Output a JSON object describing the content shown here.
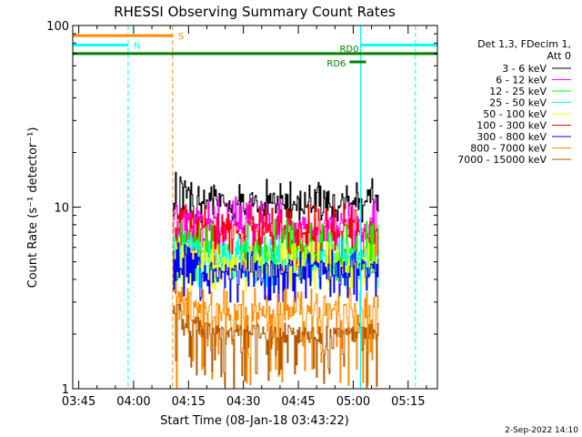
{
  "chart_data": {
    "type": "line",
    "title": "RHESSI Observing Summary Count Rates",
    "xlabel": "Start Time (08-Jan-18 03:43:22)",
    "ylabel": "Count Rate (s⁻¹ detector⁻¹)",
    "y_scale": "log",
    "ylim": [
      1,
      100
    ],
    "y_ticks": [
      {
        "value": 1,
        "label": "1"
      },
      {
        "value": 10,
        "label": "10"
      },
      {
        "value": 100,
        "label": "100"
      }
    ],
    "x_range": [
      "03:43:22",
      "05:23:00"
    ],
    "x_ticks": [
      {
        "value": "03:45",
        "label": "03:45"
      },
      {
        "value": "04:00",
        "label": "04:00"
      },
      {
        "value": "04:15",
        "label": "04:15"
      },
      {
        "value": "04:30",
        "label": "04:30"
      },
      {
        "value": "04:45",
        "label": "04:45"
      },
      {
        "value": "05:00",
        "label": "05:00"
      },
      {
        "value": "05:15",
        "label": "05:15"
      }
    ],
    "legend": {
      "placement": "right",
      "header": [
        "Det 1,3, FDecim 1,",
        "Att 0"
      ],
      "entries": [
        {
          "label": "3 - 6 keV",
          "color": "#000000"
        },
        {
          "label": "6 - 12 keV",
          "color": "#ff00ff"
        },
        {
          "label": "12 - 25 keV",
          "color": "#00ff00"
        },
        {
          "label": "25 - 50 keV",
          "color": "#00ffff"
        },
        {
          "label": "50 - 100 keV",
          "color": "#ffff00"
        },
        {
          "label": "100 - 300 keV",
          "color": "#ff0000"
        },
        {
          "label": "300 - 800 keV",
          "color": "#0000ff"
        },
        {
          "label": "800 - 7000 keV",
          "color": "#ff8c00"
        },
        {
          "label": "7000 - 15000 keV",
          "color": "#b35900"
        }
      ]
    },
    "data_interval": [
      "04:10:40",
      "05:07:00"
    ],
    "series": [
      {
        "band": "3 - 6 keV",
        "color": "#000000",
        "typical": 10.5,
        "low": 8.2,
        "high": 14.5
      },
      {
        "band": "6 - 12 keV",
        "color": "#ff00ff",
        "typical": 7.8,
        "low": 5.6,
        "high": 11.5
      },
      {
        "band": "12 - 25 keV",
        "color": "#00ff00",
        "typical": 5.5,
        "low": 3.9,
        "high": 8.5
      },
      {
        "band": "25 - 50 keV",
        "color": "#00ffff",
        "typical": 5.0,
        "low": 3.6,
        "high": 7.0
      },
      {
        "band": "50 - 100 keV",
        "color": "#ffff00",
        "typical": 4.6,
        "low": 3.4,
        "high": 6.5
      },
      {
        "band": "100 - 300 keV",
        "color": "#ff0000",
        "typical": 7.2,
        "low": 4.2,
        "high": 10.5
      },
      {
        "band": "300 - 800 keV",
        "color": "#0000ff",
        "typical": 4.4,
        "low": 3.0,
        "high": 5.8
      },
      {
        "band": "800 - 7000 keV",
        "color": "#ff8c00",
        "typical": 2.6,
        "low": 1.0,
        "high": 3.6
      },
      {
        "band": "7000 - 15000 keV",
        "color": "#b35900",
        "typical": 2.0,
        "low": 1.0,
        "high": 2.2
      }
    ],
    "flags": [
      {
        "label": "S",
        "color": "#ff8c00",
        "level": 88,
        "start": "03:43:22",
        "end": "04:10:40"
      },
      {
        "label": "N",
        "color": "#00ffff",
        "level": 78,
        "start": "03:43:22",
        "end": "03:58:30"
      },
      {
        "label": "N",
        "color": "#00ffff",
        "level": 78,
        "start": "05:02:00",
        "end": "05:23:00",
        "show_label": false
      },
      {
        "label": "RD0",
        "color": "#008000",
        "level": 70,
        "start": "03:43:22",
        "end": "05:23:00"
      },
      {
        "label": "RD6",
        "color": "#008000",
        "level": 63,
        "start": "04:59:00",
        "end": "05:03:30"
      }
    ],
    "vertical_markers": [
      {
        "time": "03:43:22",
        "color": "#00ffff",
        "style": "solid"
      },
      {
        "time": "03:58:30",
        "color": "#00ffff",
        "style": "dashed"
      },
      {
        "time": "04:10:40",
        "color": "#ff8c00",
        "style": "dashed"
      },
      {
        "time": "05:02:00",
        "color": "#00ffff",
        "style": "solid"
      },
      {
        "time": "05:17:00",
        "color": "#00ffff",
        "style": "dashed"
      }
    ]
  },
  "footer_date": "2-Sep-2022 14:10"
}
